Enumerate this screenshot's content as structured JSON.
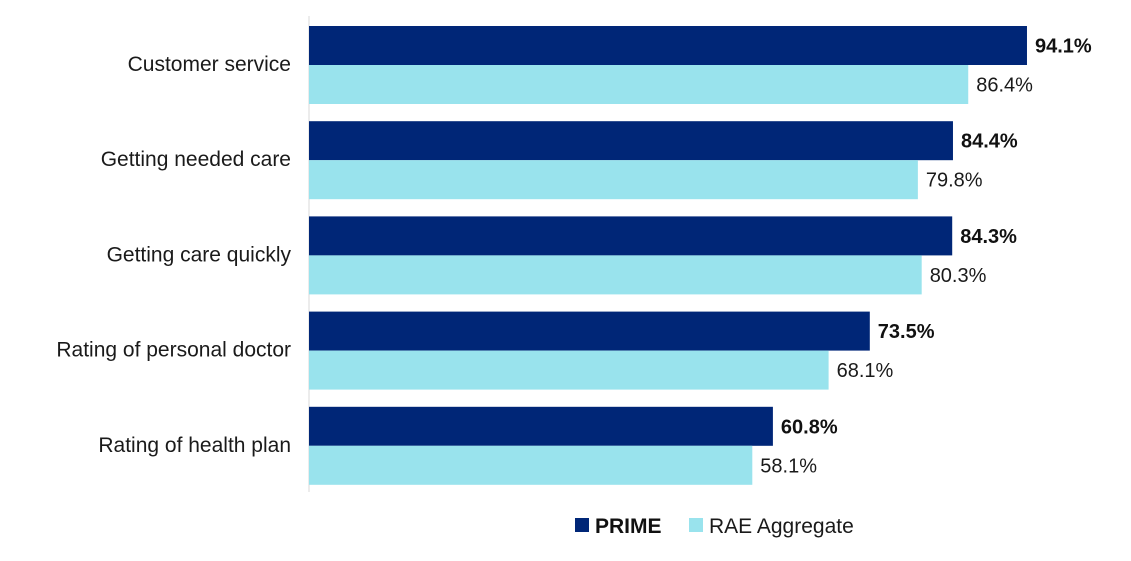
{
  "chart_data": {
    "type": "bar",
    "orientation": "horizontal",
    "categories": [
      "Customer service",
      "Getting needed care",
      "Getting care quickly",
      "Rating of personal doctor",
      "Rating of health plan"
    ],
    "series": [
      {
        "name": "PRIME",
        "color": "#002677",
        "values": [
          94.1,
          84.4,
          84.3,
          73.5,
          60.8
        ],
        "labels": [
          "94.1%",
          "84.4%",
          "84.3%",
          "73.5%",
          "60.8%"
        ]
      },
      {
        "name": "RAE Aggregate",
        "color": "#99E3ED",
        "values": [
          86.4,
          79.8,
          80.3,
          68.1,
          58.1
        ],
        "labels": [
          "86.4%",
          "79.8%",
          "80.3%",
          "68.1%",
          "58.1%"
        ]
      }
    ],
    "xlim": [
      0,
      100
    ],
    "grid": false,
    "legend_position": "bottom-center",
    "axis_color": "#d9d9d9"
  }
}
